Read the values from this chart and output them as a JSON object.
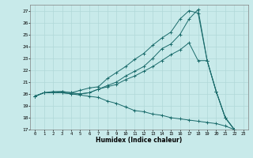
{
  "title": "",
  "xlabel": "Humidex (Indice chaleur)",
  "background_color": "#c8eaea",
  "grid_color": "#b0d8d8",
  "line_color": "#1a6b6b",
  "xlim": [
    -0.5,
    23.5
  ],
  "ylim": [
    17,
    27.5
  ],
  "xticks": [
    0,
    1,
    2,
    3,
    4,
    5,
    6,
    7,
    8,
    9,
    10,
    11,
    12,
    13,
    14,
    15,
    16,
    17,
    18,
    19,
    20,
    21,
    22,
    23
  ],
  "yticks": [
    17,
    18,
    19,
    20,
    21,
    22,
    23,
    24,
    25,
    26,
    27
  ],
  "lines": [
    {
      "x": [
        0,
        1,
        2,
        3,
        4,
        5,
        6,
        7,
        8,
        9,
        10,
        11,
        12,
        13,
        14,
        15,
        16,
        17,
        18,
        19,
        20,
        21,
        22
      ],
      "y": [
        19.8,
        20.1,
        20.1,
        20.2,
        20.1,
        20.0,
        20.1,
        20.4,
        20.7,
        21.0,
        21.5,
        21.9,
        22.3,
        23.0,
        23.8,
        24.2,
        25.0,
        26.3,
        27.1,
        22.8,
        20.2,
        18.0,
        17.0
      ]
    },
    {
      "x": [
        0,
        1,
        2,
        3,
        4,
        5,
        6,
        7,
        8,
        9,
        10,
        11,
        12,
        13,
        14,
        15,
        16,
        17,
        18,
        19,
        20,
        21,
        22
      ],
      "y": [
        19.8,
        20.1,
        20.2,
        20.2,
        20.1,
        20.3,
        20.5,
        20.6,
        21.3,
        21.8,
        22.3,
        22.9,
        23.4,
        24.1,
        24.7,
        25.2,
        26.3,
        27.0,
        26.8,
        22.8,
        20.2,
        18.0,
        17.0
      ]
    },
    {
      "x": [
        0,
        1,
        2,
        3,
        4,
        5,
        6,
        7,
        8,
        9,
        10,
        11,
        12,
        13,
        14,
        15,
        16,
        17,
        18,
        19,
        20,
        21,
        22
      ],
      "y": [
        19.8,
        20.1,
        20.1,
        20.1,
        20.0,
        19.9,
        19.8,
        19.7,
        19.4,
        19.2,
        18.9,
        18.6,
        18.5,
        18.3,
        18.2,
        18.0,
        17.9,
        17.8,
        17.7,
        17.6,
        17.5,
        17.3,
        17.0
      ]
    },
    {
      "x": [
        0,
        1,
        2,
        3,
        4,
        5,
        6,
        7,
        8,
        9,
        10,
        11,
        12,
        13,
        14,
        15,
        16,
        17,
        18,
        19,
        20,
        21,
        22
      ],
      "y": [
        19.8,
        20.1,
        20.1,
        20.1,
        20.0,
        20.0,
        20.1,
        20.4,
        20.6,
        20.8,
        21.2,
        21.5,
        21.9,
        22.3,
        22.8,
        23.3,
        23.7,
        24.3,
        22.8,
        22.8,
        20.2,
        18.0,
        17.0
      ]
    }
  ]
}
